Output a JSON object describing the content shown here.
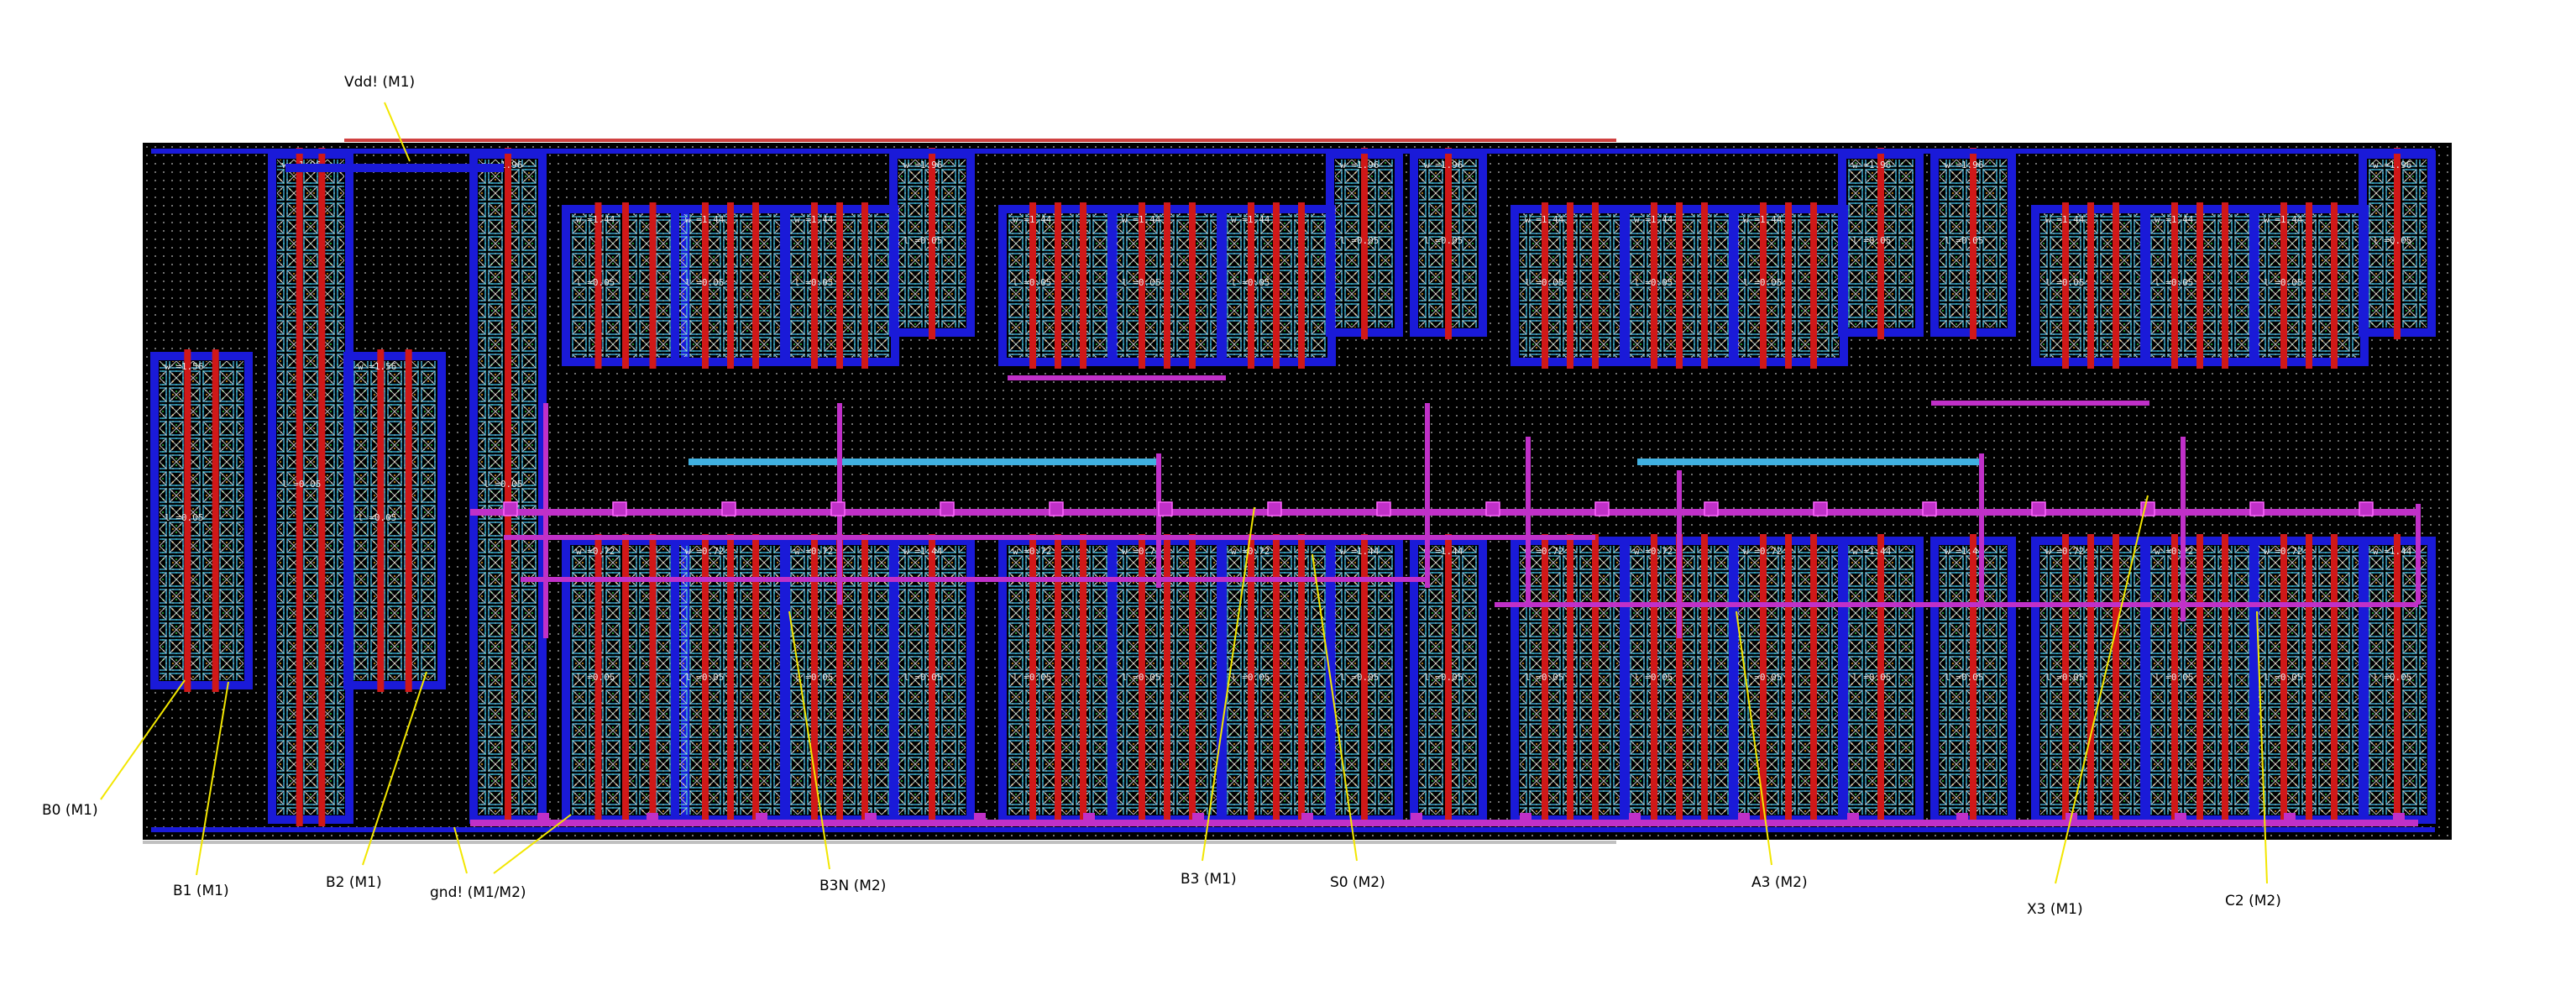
{
  "callouts": {
    "vdd": "Vdd! (M1)",
    "b0": "B0 (M1)",
    "b1": "B1 (M1)",
    "b2": "B2 (M1)",
    "gnd": "gnd! (M1/M2)",
    "b3n": "B3N (M2)",
    "b3": "B3 (M1)",
    "s0": "S0 (M2)",
    "a3": "A3 (M2)",
    "x3": "X3 (M1)",
    "c2": "C2 (M2)"
  },
  "device_labels": {
    "pmos_w196": "w =1.96",
    "pmos_w144": "w =1.44",
    "pmos_w156": "w =1.56",
    "nmos_w072": "w =0.72",
    "nmos_w036": "w =0.36",
    "length_005": "l =0.05"
  },
  "colors": {
    "background": "#000000",
    "poly": "#d01818",
    "metal1": "#1a1ad8",
    "metal2": "#c030c8",
    "diffusion": "#20c030",
    "contact": "#40b0e0",
    "leader": "#f2e600",
    "vdd_rail": "#d04040",
    "gnd_rail": "#c0c0c0"
  }
}
